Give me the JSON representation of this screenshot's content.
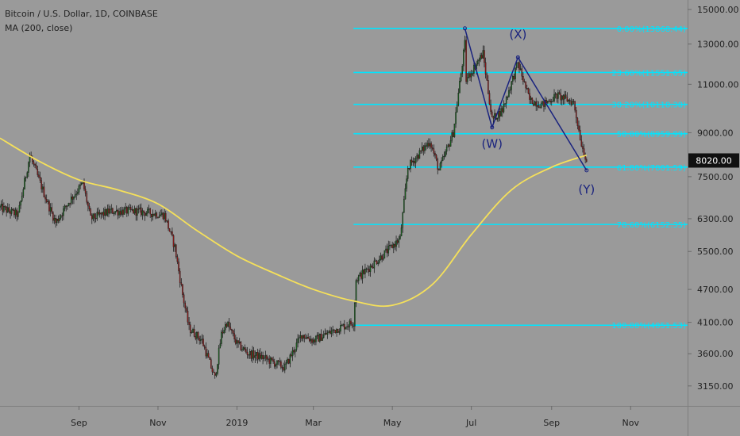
{
  "header": {
    "symbol": "Bitcoin / U.S. Dollar, 1D, COINBASE",
    "indicator": "MA (200, close)"
  },
  "price_tag": "8020.00",
  "colors": {
    "background": "#9a9a9a",
    "fib_line": "#00e5ff",
    "ma_line": "#f5e05a",
    "wave_line": "#1a237e",
    "candle_up": "#1b5e20",
    "candle_down": "#8b1a1a",
    "price_tag_bg": "#111111"
  },
  "chart_data": {
    "type": "candlestick",
    "title": "",
    "xlabel": "",
    "ylabel": "",
    "y_scale": "log",
    "ylim": [
      2900,
      15600
    ],
    "x_range": [
      "2018-07-02",
      "2019-12-15"
    ],
    "x_ticks": [
      {
        "label": "Sep",
        "date": "2018-09-01"
      },
      {
        "label": "Nov",
        "date": "2018-11-01"
      },
      {
        "label": "2019",
        "date": "2019-01-01"
      },
      {
        "label": "Mar",
        "date": "2019-03-01"
      },
      {
        "label": "May",
        "date": "2019-05-01"
      },
      {
        "label": "Jul",
        "date": "2019-07-01"
      },
      {
        "label": "Sep",
        "date": "2019-09-01"
      },
      {
        "label": "Nov",
        "date": "2019-11-01"
      }
    ],
    "y_ticks": [
      {
        "label": "15000.00",
        "value": 15000
      },
      {
        "label": "13000.00",
        "value": 13000
      },
      {
        "label": "11000.00",
        "value": 11000
      },
      {
        "label": "9000.00",
        "value": 9000
      },
      {
        "label": "7500.00",
        "value": 7500
      },
      {
        "label": "6300.00",
        "value": 6300
      },
      {
        "label": "5500.00",
        "value": 5500
      },
      {
        "label": "4700.00",
        "value": 4700
      },
      {
        "label": "4100.00",
        "value": 4100
      },
      {
        "label": "3600.00",
        "value": 3600
      },
      {
        "label": "3150.00",
        "value": 3150
      }
    ],
    "price_path": [
      [
        "2018-07-02",
        6600
      ],
      [
        "2018-07-16",
        6400
      ],
      [
        "2018-07-25",
        8200
      ],
      [
        "2018-08-08",
        6700
      ],
      [
        "2018-08-14",
        6200
      ],
      [
        "2018-08-25",
        6800
      ],
      [
        "2018-09-04",
        7300
      ],
      [
        "2018-09-10",
        6300
      ],
      [
        "2018-09-25",
        6500
      ],
      [
        "2018-10-15",
        6500
      ],
      [
        "2018-11-06",
        6400
      ],
      [
        "2018-11-14",
        5600
      ],
      [
        "2018-11-20",
        4600
      ],
      [
        "2018-11-25",
        4000
      ],
      [
        "2018-12-05",
        3800
      ],
      [
        "2018-12-15",
        3250
      ],
      [
        "2018-12-20",
        3900
      ],
      [
        "2018-12-24",
        4100
      ],
      [
        "2019-01-01",
        3750
      ],
      [
        "2019-01-10",
        3600
      ],
      [
        "2019-01-20",
        3550
      ],
      [
        "2019-02-07",
        3400
      ],
      [
        "2019-02-20",
        3900
      ],
      [
        "2019-03-01",
        3800
      ],
      [
        "2019-03-20",
        4000
      ],
      [
        "2019-04-01",
        4100
      ],
      [
        "2019-04-03",
        4900
      ],
      [
        "2019-04-23",
        5400
      ],
      [
        "2019-05-07",
        5800
      ],
      [
        "2019-05-13",
        7800
      ],
      [
        "2019-05-30",
        8700
      ],
      [
        "2019-06-06",
        7700
      ],
      [
        "2019-06-17",
        9000
      ],
      [
        "2019-06-26",
        13000
      ],
      [
        "2019-06-27",
        11200
      ],
      [
        "2019-07-10",
        12500
      ],
      [
        "2019-07-17",
        9500
      ],
      [
        "2019-07-25",
        9900
      ],
      [
        "2019-08-06",
        12000
      ],
      [
        "2019-08-15",
        10300
      ],
      [
        "2019-08-25",
        10100
      ],
      [
        "2019-09-05",
        10500
      ],
      [
        "2019-09-18",
        10200
      ],
      [
        "2019-09-24",
        8600
      ],
      [
        "2019-09-28",
        8020
      ]
    ],
    "series": [
      {
        "name": "MA (200, close)",
        "points": [
          [
            "2018-07-02",
            8800
          ],
          [
            "2018-08-01",
            8000
          ],
          [
            "2018-09-01",
            7400
          ],
          [
            "2018-10-01",
            7100
          ],
          [
            "2018-11-01",
            6700
          ],
          [
            "2018-12-01",
            6000
          ],
          [
            "2019-01-01",
            5400
          ],
          [
            "2019-02-01",
            5000
          ],
          [
            "2019-03-01",
            4700
          ],
          [
            "2019-04-01",
            4480
          ],
          [
            "2019-05-01",
            4400
          ],
          [
            "2019-06-01",
            4800
          ],
          [
            "2019-07-01",
            5900
          ],
          [
            "2019-08-01",
            7100
          ],
          [
            "2019-09-01",
            7800
          ],
          [
            "2019-09-28",
            8200
          ]
        ]
      }
    ],
    "fibonacci": {
      "start_date": "2019-04-01",
      "end_date": "2019-12-15",
      "levels": [
        {
          "label": "0.00%(13868.44)",
          "value": 13868.44
        },
        {
          "label": "23.60%(11551.65)",
          "value": 11551.65
        },
        {
          "label": "38.20%(10118.38)",
          "value": 10118.38
        },
        {
          "label": "50.00%(8959.99)",
          "value": 8959.99
        },
        {
          "label": "61.80%(7801.59)",
          "value": 7801.59
        },
        {
          "label": "78.60%(6152.35)",
          "value": 6152.35
        },
        {
          "label": "100.00%(4051.53)",
          "value": 4051.53
        }
      ]
    },
    "wave_points": [
      {
        "date": "2019-06-26",
        "value": 13868
      },
      {
        "date": "2019-07-17",
        "value": 9200
      },
      {
        "date": "2019-08-06",
        "value": 12300
      },
      {
        "date": "2019-09-28",
        "value": 7700
      }
    ],
    "annotations": [
      {
        "text": "(X)",
        "date": "2019-08-06",
        "value": 13300
      },
      {
        "text": "(W)",
        "date": "2019-07-17",
        "value": 8450
      },
      {
        "text": "(Y)",
        "date": "2019-09-28",
        "value": 7000
      }
    ],
    "last_price": 8020
  }
}
